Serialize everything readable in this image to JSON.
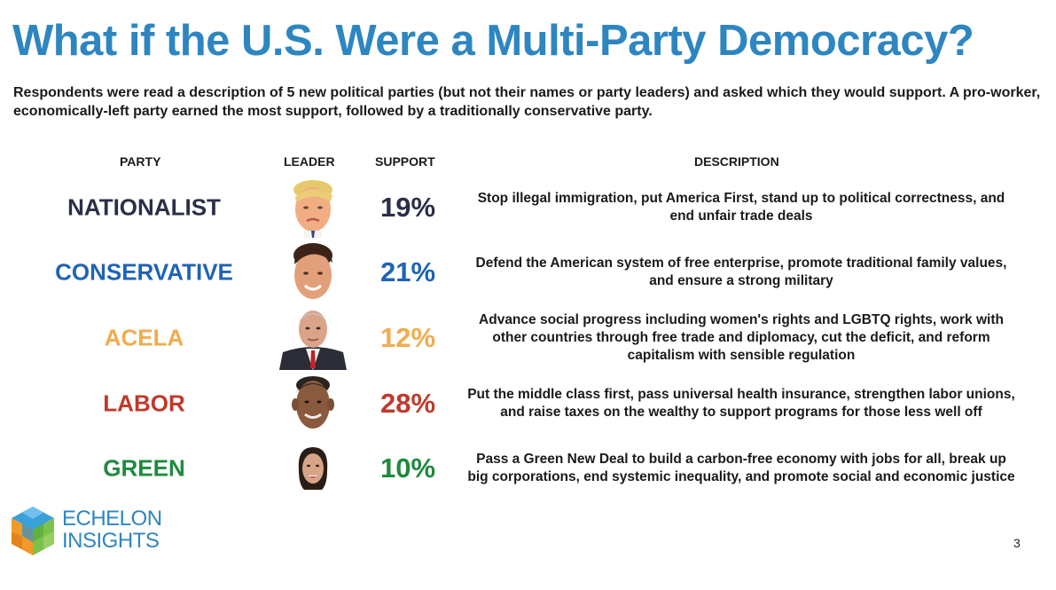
{
  "title": "What if the U.S. Were a Multi-Party Democracy?",
  "subtitle": "Respondents were read a description of 5 new political parties (but not their names or party leaders) and asked which they would support. A pro-worker, economically-left party earned the most support, followed by a traditionally conservative party.",
  "headers": {
    "party": "PARTY",
    "leader": "LEADER",
    "support": "SUPPORT",
    "description": "DESCRIPTION"
  },
  "parties": [
    {
      "name": "NATIONALIST",
      "support": "19%",
      "description": "Stop illegal immigration, put America First, stand up to political correctness, and end unfair trade deals",
      "color": "#2b2f48",
      "leader_icon": "leader-portrait-icon"
    },
    {
      "name": "CONSERVATIVE",
      "support": "21%",
      "description": "Defend the American system of free enterprise, promote traditional family values, and ensure a strong military",
      "color": "#1f63b4",
      "leader_icon": "leader-portrait-icon"
    },
    {
      "name": "ACELA",
      "support": "12%",
      "description": "Advance social progress including women's rights and LGBTQ rights, work with other countries through free trade and diplomacy, cut the deficit, and reform capitalism with sensible regulation",
      "color": "#f0ac4d",
      "leader_icon": "leader-portrait-icon"
    },
    {
      "name": "LABOR",
      "support": "28%",
      "description": "Put the middle class first, pass universal health insurance, strengthen labor unions, and raise taxes on the wealthy to support programs for those less well off",
      "color": "#c0392b",
      "leader_icon": "leader-portrait-icon"
    },
    {
      "name": "GREEN",
      "support": "10%",
      "description": "Pass a Green New Deal to build a carbon-free economy with jobs for all, break up big corporations, end systemic inequality, and promote social and economic justice",
      "color": "#1e8a3c",
      "leader_icon": "leader-portrait-icon"
    }
  ],
  "logo": {
    "line1": "ECHELON",
    "line2": "INSIGHTS",
    "icon": "echelon-cube-logo-icon"
  },
  "page_number": "3",
  "accent_color": "#2e86c1"
}
